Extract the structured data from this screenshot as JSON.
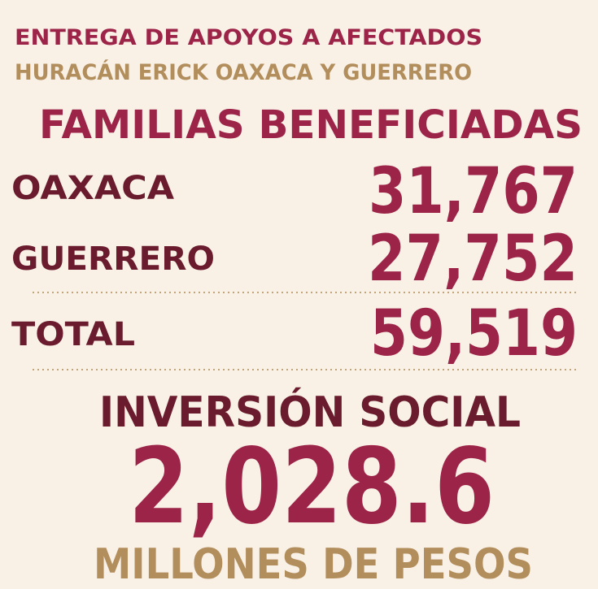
{
  "header": {
    "title": "ENTREGA DE APOYOS A AFECTADOS",
    "subtitle": "HURACÁN ERICK OAXACA Y GUERRERO"
  },
  "families": {
    "heading": "FAMILIAS BENEFICIADAS",
    "rows": [
      [
        "OAXACA",
        "31,767"
      ],
      [
        "GUERRERO",
        "27,752"
      ]
    ],
    "total": [
      "TOTAL",
      "59,519"
    ]
  },
  "investment": {
    "heading": "INVERSIÓN SOCIAL",
    "amount": "2,028.6",
    "unit": "MILLONES DE PESOS"
  }
}
